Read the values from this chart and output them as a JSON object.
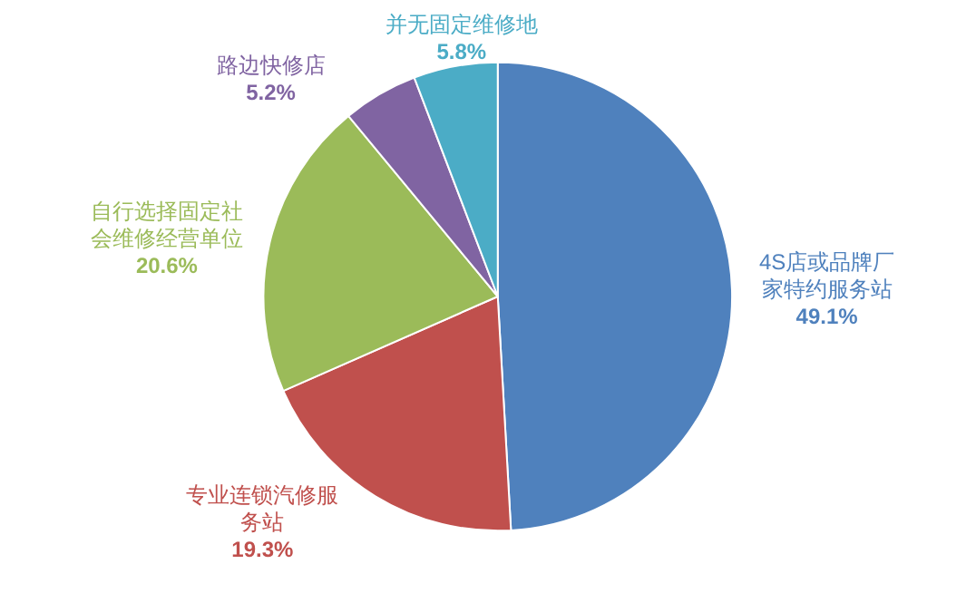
{
  "chart_data": {
    "type": "pie",
    "categories": [
      "4S店或品牌厂家特约服务站",
      "专业连锁汽修服务站",
      "自行选择固定社会维修经营单位",
      "路边快修店",
      "并无固定维修地"
    ],
    "values": [
      49.1,
      19.3,
      20.6,
      5.2,
      5.8
    ],
    "value_labels": [
      "49.1%",
      "19.3%",
      "20.6%",
      "5.2%",
      "5.8%"
    ],
    "colors": [
      "#4f81bd",
      "#c0504d",
      "#9bbb59",
      "#8064a2",
      "#4bacc6"
    ],
    "legend": false
  }
}
